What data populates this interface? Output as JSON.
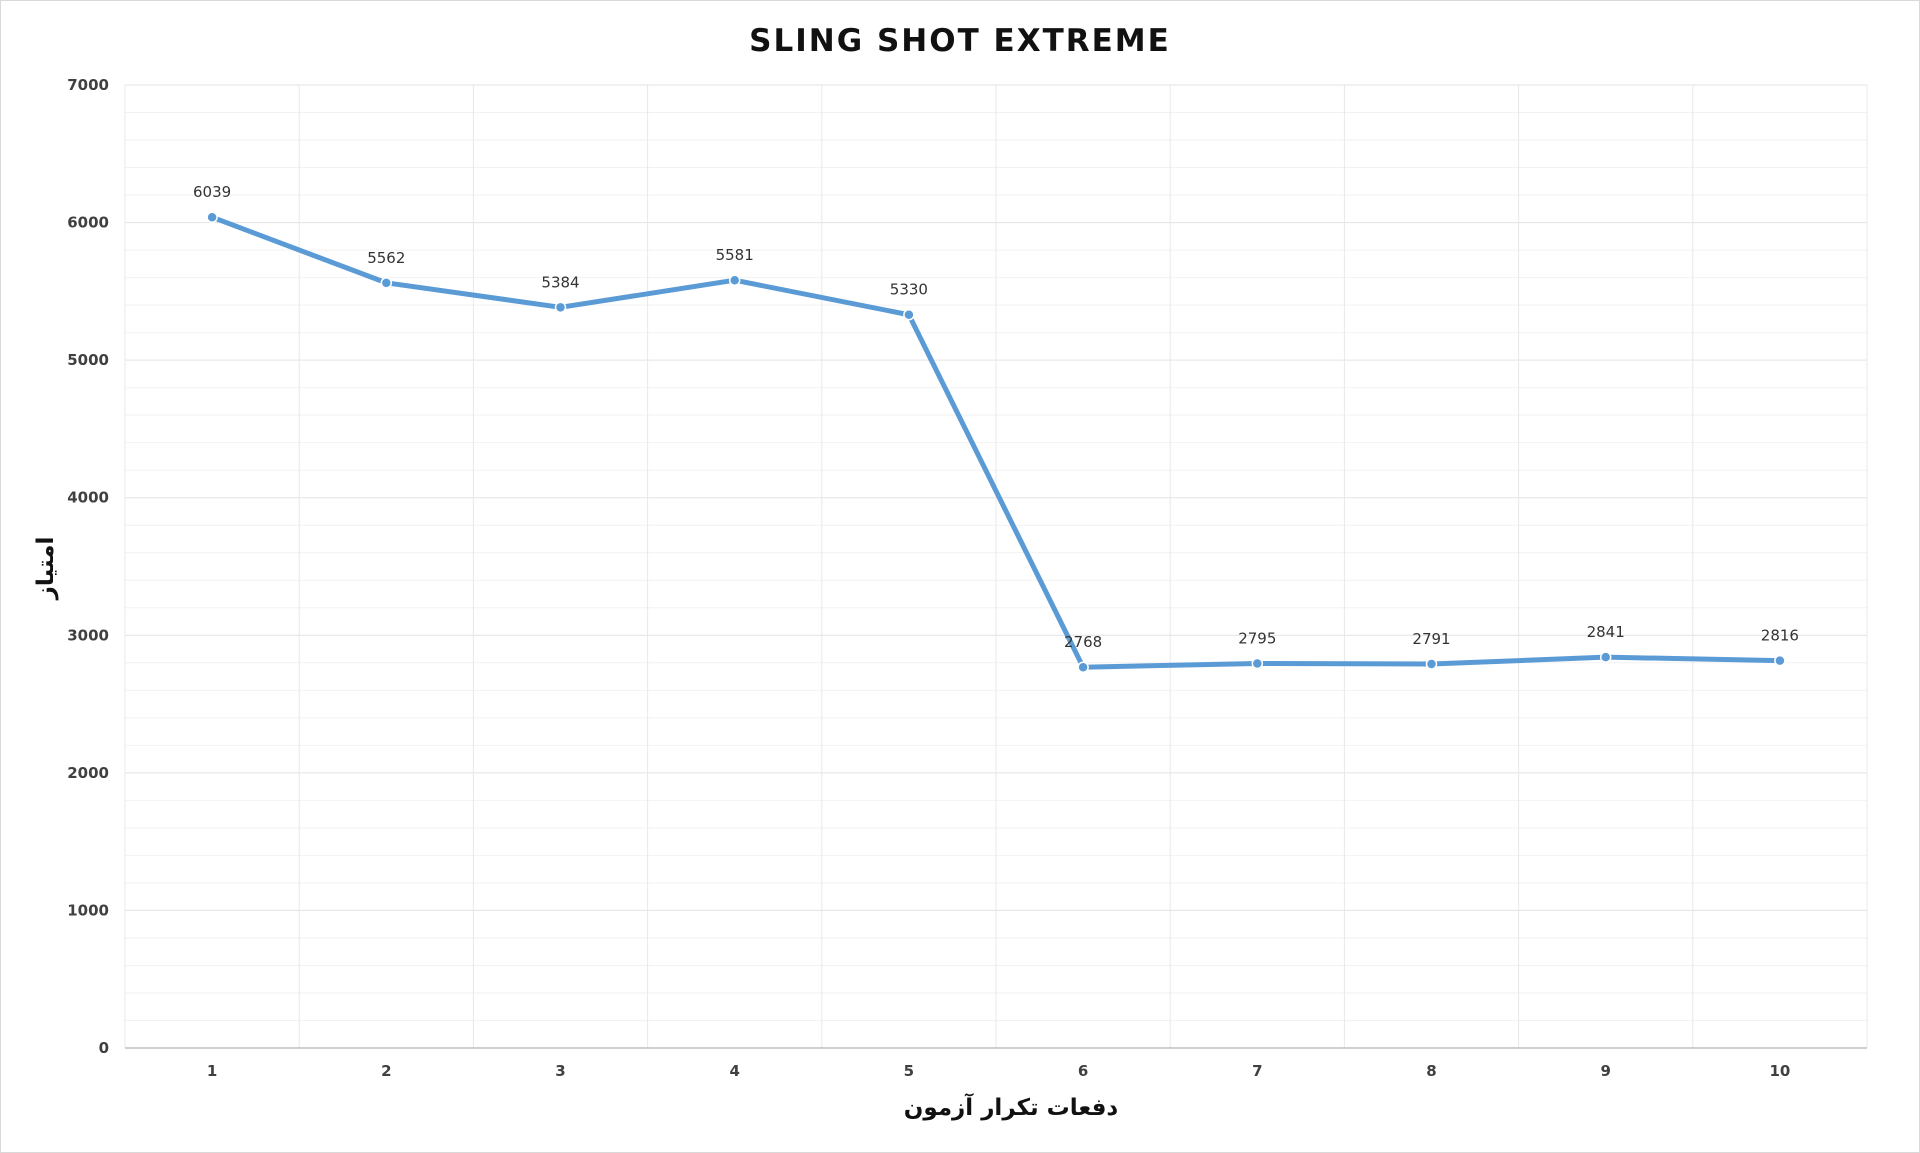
{
  "chart_data": {
    "type": "line",
    "title": "SLING SHOT EXTREME",
    "xlabel": "دفعات تکرار آزمون",
    "ylabel": "امتیاز",
    "categories": [
      "1",
      "2",
      "3",
      "4",
      "5",
      "6",
      "7",
      "8",
      "9",
      "10"
    ],
    "series": [
      {
        "values": [
          6039,
          5562,
          5384,
          5581,
          5330,
          2768,
          2795,
          2791,
          2841,
          2816
        ],
        "color": "#5b9bd5"
      }
    ],
    "ylim": [
      0,
      7000
    ],
    "yticks": [
      "0",
      "1000",
      "2000",
      "3000",
      "4000",
      "5000",
      "6000",
      "7000"
    ],
    "grid": true,
    "legend": "none"
  }
}
